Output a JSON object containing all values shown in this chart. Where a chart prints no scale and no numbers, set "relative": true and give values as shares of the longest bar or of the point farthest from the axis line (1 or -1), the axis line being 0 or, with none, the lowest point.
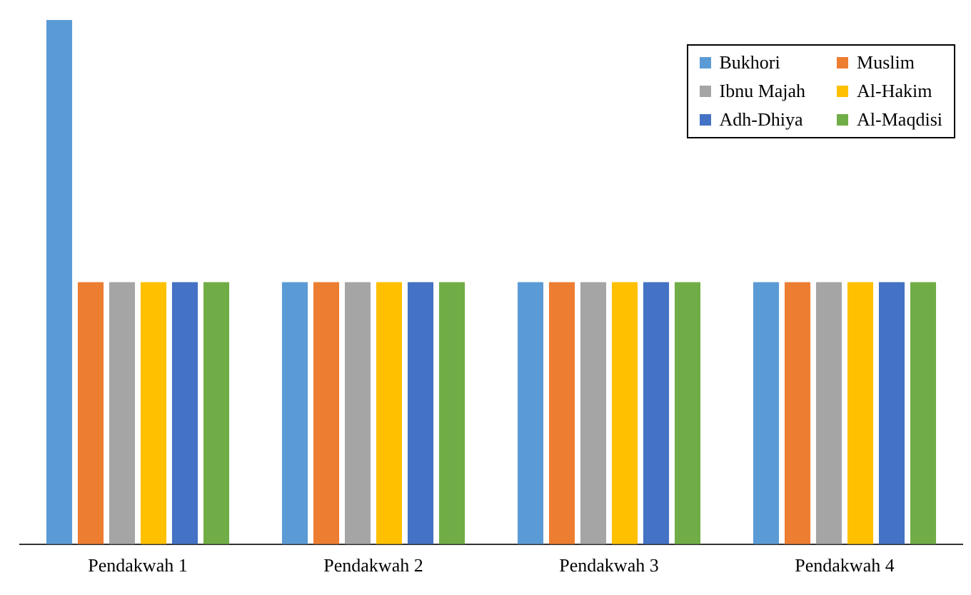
{
  "chart_data": {
    "type": "bar",
    "relative": true,
    "categories": [
      "Pendakwah 1",
      "Pendakwah 2",
      "Pendakwah 3",
      "Pendakwah 4"
    ],
    "series": [
      {
        "name": "Bukhori",
        "color": "#5b9bd5",
        "values": [
          1,
          0.5,
          0.5,
          0.5
        ]
      },
      {
        "name": "Muslim",
        "color": "#ed7d31",
        "values": [
          0.5,
          0.5,
          0.5,
          0.5
        ]
      },
      {
        "name": "Ibnu Majah",
        "color": "#a5a5a5",
        "values": [
          0.5,
          0.5,
          0.5,
          0.5
        ]
      },
      {
        "name": "Al-Hakim",
        "color": "#ffc000",
        "values": [
          0.5,
          0.5,
          0.5,
          0.5
        ]
      },
      {
        "name": "Adh-Dhiya",
        "color": "#4472c4",
        "values": [
          0.5,
          0.5,
          0.5,
          0.5
        ]
      },
      {
        "name": "Al-Maqdisi",
        "color": "#70ad47",
        "values": [
          0.5,
          0.5,
          0.5,
          0.5
        ]
      }
    ],
    "grid": false,
    "legend": "top right"
  }
}
